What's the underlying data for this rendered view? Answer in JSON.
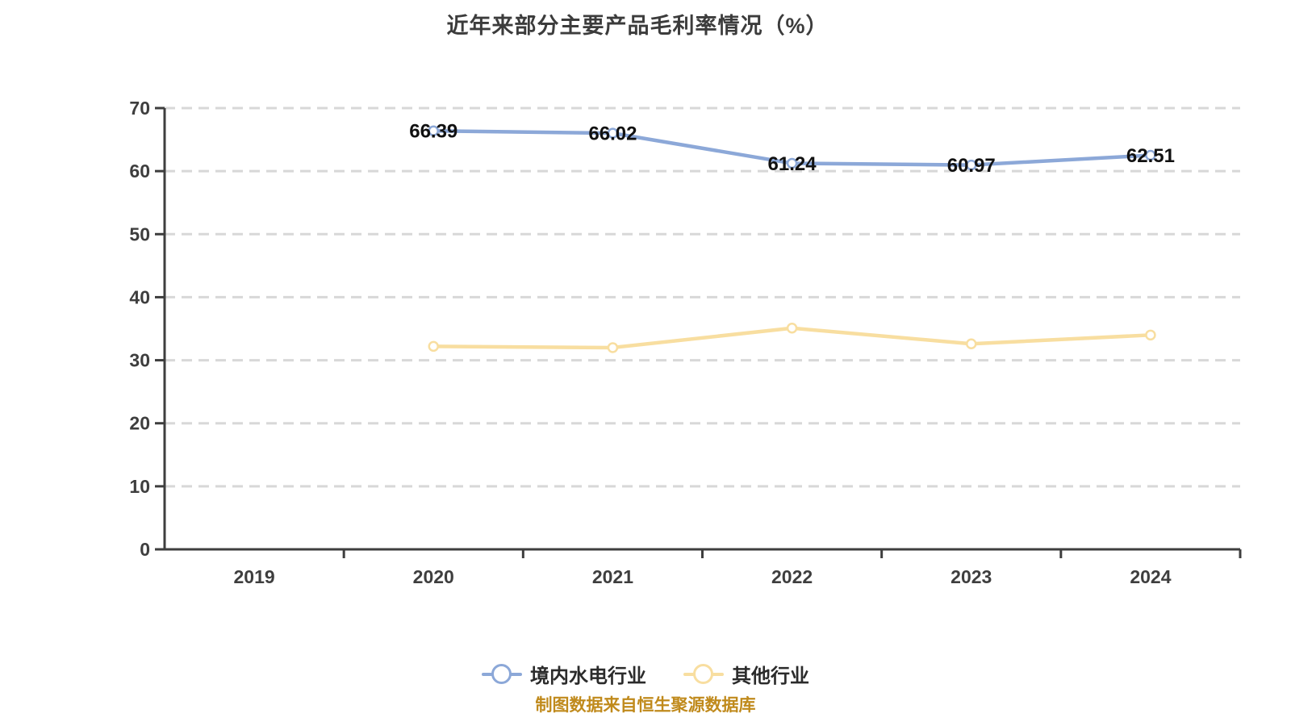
{
  "title": "近年来部分主要产品毛利率情况（%）",
  "footer": {
    "source_note": "制图数据来自恒生聚源数据库",
    "color": "#c08a1c"
  },
  "colors": {
    "series_blue": "#8ca8d8",
    "series_yellow": "#f8dea0",
    "axis": "#3e3e3e",
    "gridline": "#d8d8d8",
    "axis_label": "#3e3e3e",
    "data_label": "#111111",
    "marker_fill": "#ffffff"
  },
  "legend": [
    {
      "label": "境内水电行业",
      "color": "#8ca8d8"
    },
    {
      "label": "其他行业",
      "color": "#f8dea0"
    }
  ],
  "chart_data": {
    "type": "line",
    "title": "近年来部分主要产品毛利率情况（%）",
    "categories": [
      "2019",
      "2020",
      "2021",
      "2022",
      "2023",
      "2024"
    ],
    "series": [
      {
        "name": "境内水电行业",
        "color": "#8ca8d8",
        "x": [
          "2020",
          "2021",
          "2022",
          "2023",
          "2024"
        ],
        "values": [
          66.39,
          66.02,
          61.24,
          60.97,
          62.51
        ],
        "labels": [
          "66.39",
          "66.02",
          "61.24",
          "60.97",
          "62.51"
        ],
        "show_labels": true
      },
      {
        "name": "其他行业",
        "color": "#f8dea0",
        "x": [
          "2020",
          "2021",
          "2022",
          "2023",
          "2024"
        ],
        "values": [
          32.2,
          32.0,
          35.1,
          32.6,
          34.0
        ],
        "labels": [],
        "show_labels": false
      }
    ],
    "xlabel": "",
    "ylabel": "",
    "ylim": [
      0,
      70
    ],
    "yticks": [
      0,
      10,
      20,
      30,
      40,
      50,
      60,
      70
    ],
    "grid": "horizontal-dashed",
    "legend_position": "bottom"
  }
}
